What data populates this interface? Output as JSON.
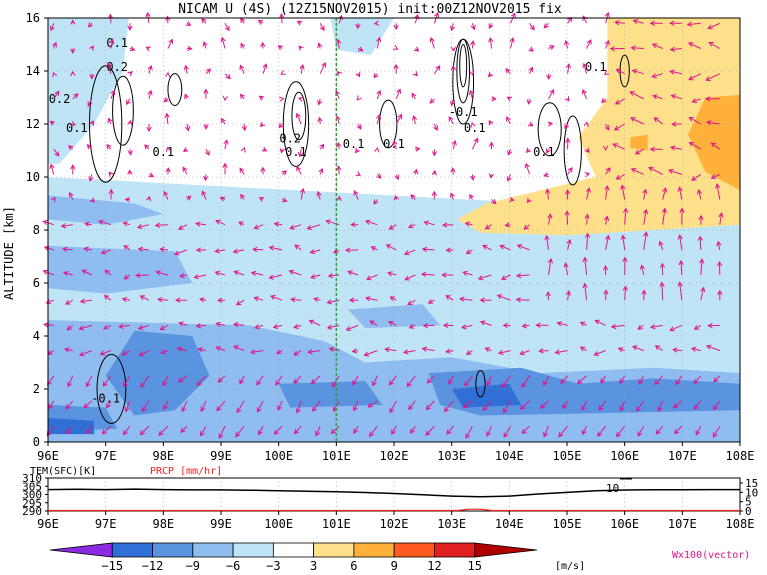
{
  "title": "NICAM U (4S) (12Z15NOV2015) init:00Z12NOV2015 fix",
  "colors": {
    "neg15": "#8a2be2",
    "neg12": "#2f6fd6",
    "neg9": "#5a93e0",
    "neg6": "#8fbdf0",
    "neg3": "#bfe4f5",
    "zero": "#ffffff",
    "pos3": "#ffe08a",
    "pos6": "#ffb13b",
    "pos9": "#ff5a1f",
    "pos12": "#e02020",
    "pos15": "#b00000",
    "vector": "#e0148c",
    "contour": "#000000",
    "grid": "#9a9a9a",
    "marker": "#22aa22",
    "prcp": "#ff2020"
  },
  "chart_data": [
    {
      "type": "heatmap",
      "title": "NICAM U (4S) (12Z15NOV2015) init:00Z12NOV2015 fix",
      "xlabel": "",
      "ylabel": "ALTITUDE [km]",
      "x_ticks": [
        "96E",
        "97E",
        "98E",
        "99E",
        "100E",
        "101E",
        "102E",
        "103E",
        "104E",
        "105E",
        "106E",
        "107E",
        "108E"
      ],
      "y_ticks": [
        "0",
        "2",
        "4",
        "6",
        "8",
        "10",
        "12",
        "14",
        "16"
      ],
      "xlim": [
        96,
        108
      ],
      "ylim": [
        0,
        16
      ],
      "grid": true,
      "marker_longitude": 101,
      "shading_regions": [
        {
          "level": "neg3",
          "polygon": [
            [
              96.0,
              16.0
            ],
            [
              97.4,
              16.0
            ],
            [
              97.3,
              14.0
            ],
            [
              96.8,
              12.0
            ],
            [
              96.2,
              10.5
            ],
            [
              96.0,
              10.5
            ]
          ]
        },
        {
          "level": "neg3",
          "polygon": [
            [
              96.0,
              10.0
            ],
            [
              108.0,
              8.6
            ],
            [
              108.0,
              0.0
            ],
            [
              96.0,
              0.0
            ]
          ]
        },
        {
          "level": "neg6",
          "polygon": [
            [
              96.0,
              9.3
            ],
            [
              97.5,
              9.0
            ],
            [
              98.0,
              8.6
            ],
            [
              97.0,
              8.2
            ],
            [
              96.0,
              8.4
            ]
          ]
        },
        {
          "level": "neg6",
          "polygon": [
            [
              96.0,
              7.4
            ],
            [
              98.2,
              7.2
            ],
            [
              98.5,
              6.0
            ],
            [
              97.0,
              5.6
            ],
            [
              96.0,
              5.8
            ]
          ]
        },
        {
          "level": "neg6",
          "polygon": [
            [
              96.0,
              4.6
            ],
            [
              99.5,
              4.4
            ],
            [
              100.8,
              3.8
            ],
            [
              101.5,
              3.0
            ],
            [
              103.0,
              3.2
            ],
            [
              104.5,
              2.6
            ],
            [
              106.5,
              2.8
            ],
            [
              108.0,
              2.6
            ],
            [
              108.0,
              0.0
            ],
            [
              96.0,
              0.0
            ]
          ]
        },
        {
          "level": "neg6",
          "polygon": [
            [
              101.2,
              5.0
            ],
            [
              102.5,
              5.2
            ],
            [
              102.8,
              4.4
            ],
            [
              101.5,
              4.3
            ]
          ]
        },
        {
          "level": "neg9",
          "polygon": [
            [
              97.5,
              4.2
            ],
            [
              98.5,
              4.0
            ],
            [
              98.8,
              2.5
            ],
            [
              98.2,
              1.2
            ],
            [
              97.5,
              1.0
            ],
            [
              97.0,
              2.5
            ]
          ]
        },
        {
          "level": "neg9",
          "polygon": [
            [
              102.6,
              2.6
            ],
            [
              104.2,
              2.8
            ],
            [
              105.2,
              2.2
            ],
            [
              106.5,
              2.4
            ],
            [
              108.0,
              2.2
            ],
            [
              108.0,
              1.2
            ],
            [
              103.5,
              1.0
            ],
            [
              102.8,
              1.4
            ]
          ]
        },
        {
          "level": "neg9",
          "polygon": [
            [
              96.0,
              1.4
            ],
            [
              97.0,
              1.3
            ],
            [
              97.2,
              0.5
            ],
            [
              96.0,
              0.4
            ]
          ]
        },
        {
          "level": "neg9",
          "polygon": [
            [
              100.0,
              2.2
            ],
            [
              101.5,
              2.3
            ],
            [
              101.8,
              1.4
            ],
            [
              100.2,
              1.3
            ]
          ]
        },
        {
          "level": "neg12",
          "polygon": [
            [
              103.0,
              2.0
            ],
            [
              104.0,
              2.2
            ],
            [
              104.2,
              1.4
            ],
            [
              103.2,
              1.3
            ]
          ]
        },
        {
          "level": "neg12",
          "polygon": [
            [
              96.0,
              0.9
            ],
            [
              96.8,
              0.8
            ],
            [
              96.8,
              0.3
            ],
            [
              96.0,
              0.3
            ]
          ]
        },
        {
          "level": "neg3",
          "polygon": [
            [
              100.9,
              16.0
            ],
            [
              102.0,
              16.0
            ],
            [
              101.6,
              14.6
            ],
            [
              101.0,
              14.8
            ]
          ]
        },
        {
          "level": "pos3",
          "polygon": [
            [
              105.7,
              16.0
            ],
            [
              108.0,
              16.0
            ],
            [
              108.0,
              8.2
            ],
            [
              106.5,
              8.0
            ],
            [
              105.0,
              7.8
            ],
            [
              103.5,
              7.9
            ],
            [
              103.1,
              8.4
            ],
            [
              103.6,
              9.0
            ],
            [
              105.5,
              10.0
            ],
            [
              105.2,
              11.5
            ],
            [
              105.7,
              13.0
            ]
          ]
        },
        {
          "level": "pos6",
          "polygon": [
            [
              107.4,
              13.0
            ],
            [
              108.0,
              13.1
            ],
            [
              108.0,
              9.5
            ],
            [
              107.4,
              10.2
            ],
            [
              107.1,
              11.6
            ]
          ]
        },
        {
          "level": "pos6",
          "polygon": [
            [
              106.1,
              11.5
            ],
            [
              106.4,
              11.6
            ],
            [
              106.4,
              11.0
            ],
            [
              106.1,
              11.1
            ]
          ]
        }
      ],
      "contour_labels": [
        {
          "text": "0.1",
          "lon": 97.2,
          "lat": 14.9
        },
        {
          "text": "0.2",
          "lon": 97.2,
          "lat": 14.0
        },
        {
          "text": "0.2",
          "lon": 96.2,
          "lat": 12.8
        },
        {
          "text": "0.1",
          "lon": 96.5,
          "lat": 11.7
        },
        {
          "text": "0.1",
          "lon": 98.0,
          "lat": 10.8
        },
        {
          "text": "0.2",
          "lon": 100.2,
          "lat": 11.3
        },
        {
          "text": "0.1",
          "lon": 100.3,
          "lat": 10.8
        },
        {
          "text": "0.1",
          "lon": 101.3,
          "lat": 11.1
        },
        {
          "text": "0.1",
          "lon": 102.0,
          "lat": 11.1
        },
        {
          "text": "-0.1",
          "lon": 103.2,
          "lat": 12.3
        },
        {
          "text": "0.1",
          "lon": 103.4,
          "lat": 11.7
        },
        {
          "text": "0.1",
          "lon": 104.6,
          "lat": 10.8
        },
        {
          "text": "0.1",
          "lon": 105.5,
          "lat": 14.0
        },
        {
          "text": "-0.1",
          "lon": 97.0,
          "lat": 1.5
        }
      ],
      "colorbar": {
        "ticks": [
          "−15",
          "−12",
          "−9",
          "−6",
          "−3",
          "3",
          "6",
          "9",
          "12",
          "15"
        ],
        "levels": [
          "neg15",
          "neg12",
          "neg9",
          "neg6",
          "neg3",
          "zero",
          "pos3",
          "pos6",
          "pos9",
          "pos12",
          "pos15"
        ],
        "unit": "[m/s]"
      },
      "vector_legend": "Wx100(vector)"
    },
    {
      "type": "line",
      "xlabel": "",
      "xlim": [
        96,
        108
      ],
      "x_ticks": [
        "96E",
        "97E",
        "98E",
        "99E",
        "100E",
        "101E",
        "102E",
        "103E",
        "104E",
        "105E",
        "106E",
        "107E",
        "108E"
      ],
      "left_axis_label": "TEM(SFC)[K]",
      "left_ticks": [
        "310",
        "305",
        "300",
        "295",
        "290"
      ],
      "left_ylim": [
        290,
        310
      ],
      "right_axis_label": "PRCP [mm/hr]",
      "right_ticks": [
        "15",
        "10",
        "5",
        "0"
      ],
      "right_ylim": [
        0,
        15
      ],
      "annotation": "10",
      "series": [
        {
          "name": "TEM(SFC)[K]",
          "x": [
            96,
            96.5,
            97,
            97.5,
            98,
            98.5,
            99,
            99.5,
            100,
            100.5,
            101,
            101.5,
            102,
            102.5,
            103,
            103.5,
            104,
            104.5,
            105,
            105.5,
            106,
            106.5,
            107,
            107.5,
            108
          ],
          "y": [
            303.0,
            303.2,
            303.0,
            303.3,
            303.0,
            302.8,
            302.8,
            302.6,
            302.3,
            302.0,
            301.7,
            301.2,
            300.6,
            299.8,
            299.0,
            298.6,
            299.0,
            300.3,
            301.3,
            302.3,
            302.7,
            302.9,
            302.9,
            303.0,
            303.0
          ]
        },
        {
          "name": "PRCP [mm/hr]",
          "x": [
            96,
            102.9,
            103.1,
            103.3,
            103.5,
            103.7,
            108
          ],
          "y": [
            0,
            0,
            0,
            0.6,
            0.6,
            0,
            0
          ]
        }
      ]
    }
  ]
}
